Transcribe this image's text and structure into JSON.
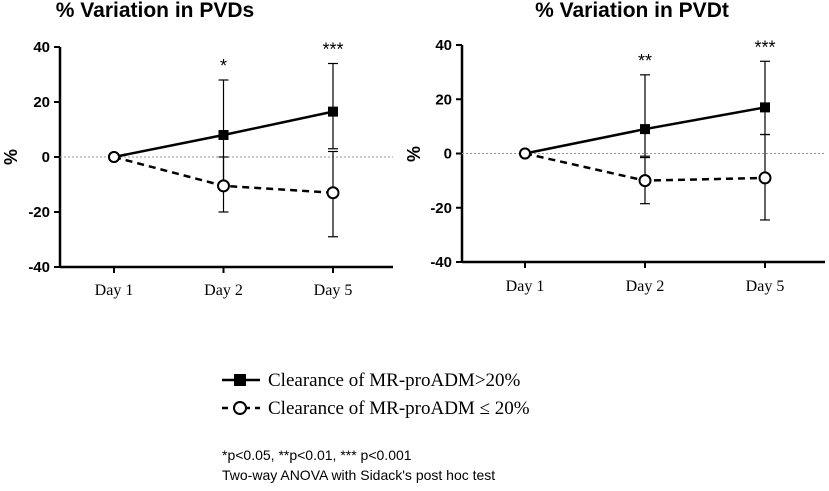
{
  "chart_data": [
    {
      "type": "line",
      "title": "% Variation in PVDs",
      "xlabel": "",
      "ylabel": "%",
      "categories": [
        "Day 1",
        "Day 2",
        "Day 5"
      ],
      "ylim": [
        -40,
        40
      ],
      "yticks": [
        "40",
        "20",
        "0",
        "-20",
        "-40"
      ],
      "significance": [
        "",
        "*",
        "***"
      ],
      "series": [
        {
          "name": "Clearance of MR-proADM>20%",
          "marker": "filled-square",
          "line": "solid",
          "values": [
            0,
            8,
            16.5
          ],
          "err_low": [
            0,
            -10,
            3
          ],
          "err_high": [
            0,
            28,
            34
          ]
        },
        {
          "name": "Clearance of MR-proADM ≤ 20%",
          "marker": "open-circle",
          "line": "dashed",
          "values": [
            0,
            -10.5,
            -13
          ],
          "err_low": [
            0,
            -20,
            -29
          ],
          "err_high": [
            0,
            0,
            2
          ]
        }
      ]
    },
    {
      "type": "line",
      "title": "% Variation in PVDt",
      "xlabel": "",
      "ylabel": "%",
      "categories": [
        "Day 1",
        "Day 2",
        "Day 5"
      ],
      "ylim": [
        -40,
        40
      ],
      "yticks": [
        "40",
        "20",
        "0",
        "-20",
        "-40"
      ],
      "significance": [
        "",
        "**",
        "***"
      ],
      "series": [
        {
          "name": "Clearance of MR-proADM>20%",
          "marker": "filled-square",
          "line": "solid",
          "values": [
            0,
            9,
            17
          ],
          "err_low": [
            0,
            -1,
            7
          ],
          "err_high": [
            0,
            29,
            34
          ]
        },
        {
          "name": "Clearance of MR-proADM ≤ 20%",
          "marker": "open-circle",
          "line": "dashed",
          "values": [
            0,
            -10,
            -9
          ],
          "err_low": [
            0,
            -18.5,
            -24.5
          ],
          "err_high": [
            0,
            -1.5,
            7
          ]
        }
      ]
    }
  ],
  "legend": {
    "items": [
      {
        "label": "Clearance of MR-proADM>20%",
        "marker": "filled-square",
        "line": "solid"
      },
      {
        "label": "Clearance of MR-proADM ≤ 20%",
        "marker": "open-circle",
        "line": "dashed"
      }
    ]
  },
  "footnote": {
    "line1": "*p<0.05, **p<0.01, *** p<0.001",
    "line2": "Two-way ANOVA with Sidack's post hoc test"
  }
}
